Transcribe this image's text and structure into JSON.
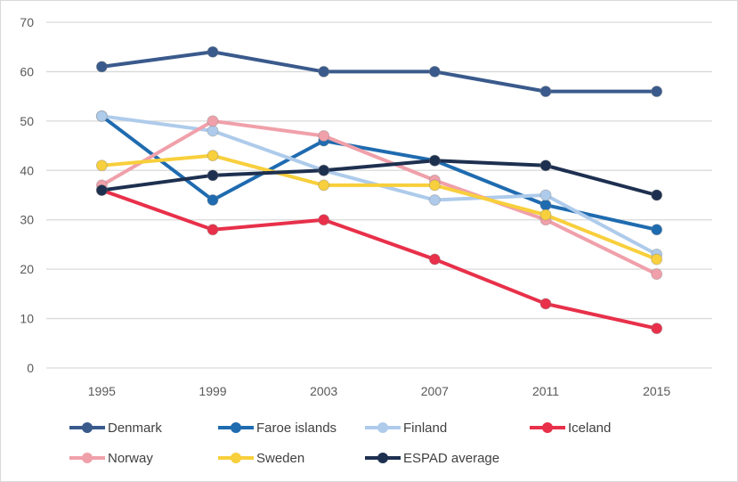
{
  "chart_data": {
    "type": "line",
    "title": "",
    "xlabel": "",
    "ylabel": "",
    "categories": [
      "1995",
      "1999",
      "2003",
      "2007",
      "2011",
      "2015"
    ],
    "ylim": [
      0,
      70
    ],
    "yticks": [
      0,
      10,
      20,
      30,
      40,
      50,
      60,
      70
    ],
    "ytick_labels": [
      "0",
      "10",
      "20",
      "30",
      "40",
      "50",
      "60",
      "70"
    ],
    "grid": true,
    "legend_position": "bottom",
    "series": [
      {
        "name": "Denmark",
        "color": "#3a5a8c",
        "values": [
          61,
          64,
          60,
          60,
          56,
          56
        ]
      },
      {
        "name": "Faroe islands",
        "color": "#1f6bb0",
        "values": [
          51,
          34,
          46,
          42,
          33,
          28
        ]
      },
      {
        "name": "Finland",
        "color": "#aecbeb",
        "values": [
          51,
          48,
          40,
          34,
          35,
          23
        ]
      },
      {
        "name": "Iceland",
        "color": "#e8304a",
        "values": [
          36,
          28,
          30,
          22,
          13,
          8
        ]
      },
      {
        "name": "Norway",
        "color": "#f0a0aa",
        "values": [
          37,
          50,
          47,
          38,
          30,
          19
        ]
      },
      {
        "name": "Sweden",
        "color": "#f8cf3c",
        "values": [
          41,
          43,
          37,
          37,
          31,
          22
        ]
      },
      {
        "name": "ESPAD average",
        "color": "#1e3050",
        "values": [
          36,
          39,
          40,
          42,
          41,
          35
        ]
      }
    ]
  }
}
